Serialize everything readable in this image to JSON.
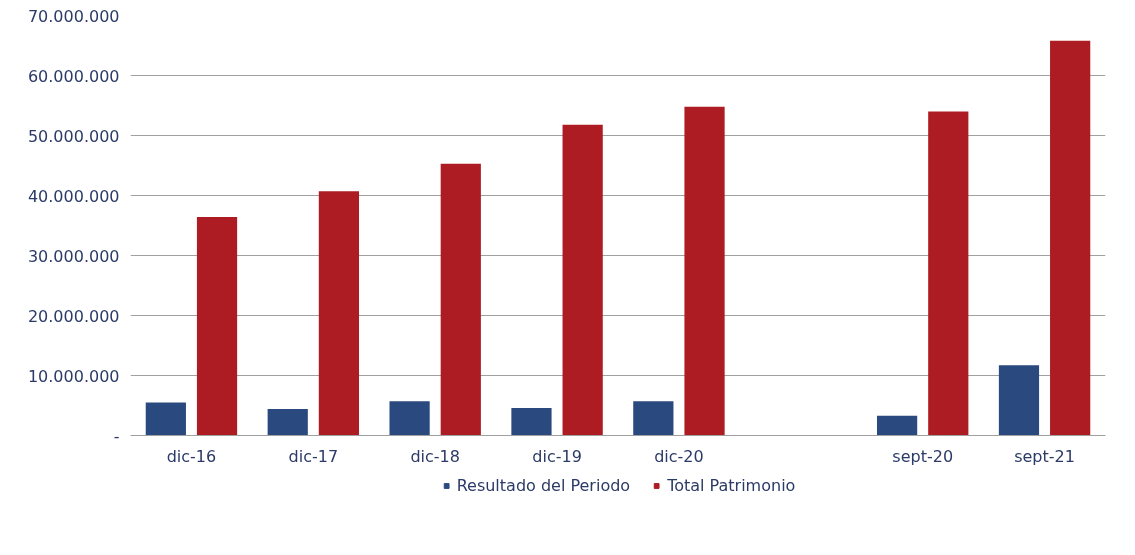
{
  "chart_data": {
    "type": "bar",
    "categories": [
      "dic-16",
      "dic-17",
      "dic-18",
      "dic-19",
      "dic-20",
      null,
      "sept-20",
      "sept-21"
    ],
    "series": [
      {
        "name": "Resultado del Periodo",
        "color": "#2a4a7f",
        "values": [
          5500000,
          4400000,
          5700000,
          4600000,
          5700000,
          null,
          3300000,
          11700000
        ]
      },
      {
        "name": "Total Patrimonio",
        "color": "#ae1c23",
        "values": [
          36400000,
          40700000,
          45300000,
          51800000,
          54800000,
          null,
          54000000,
          65800000
        ]
      }
    ],
    "ylim": [
      0,
      70000000
    ],
    "yticks": [
      {
        "value": 0,
        "label": "-"
      },
      {
        "value": 10000000,
        "label": "10.000.000"
      },
      {
        "value": 20000000,
        "label": "20.000.000"
      },
      {
        "value": 30000000,
        "label": "30.000.000"
      },
      {
        "value": 40000000,
        "label": "40.000.000"
      },
      {
        "value": 50000000,
        "label": "50.000.000"
      },
      {
        "value": 60000000,
        "label": "60.000.000"
      },
      {
        "value": 70000000,
        "label": "70.000.000"
      }
    ],
    "grid": "y",
    "legend": "bottom"
  }
}
